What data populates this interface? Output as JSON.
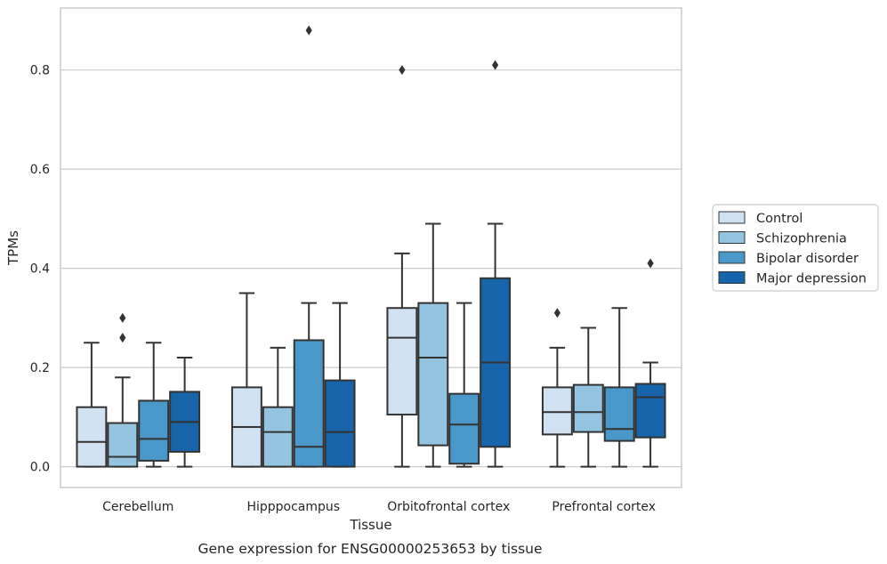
{
  "chart_data": {
    "type": "box",
    "caption": "Gene expression for ENSG00000253653 by tissue",
    "xlabel": "Tissue",
    "ylabel": "TPMs",
    "ylim": [
      -0.042,
      0.925
    ],
    "yticks": [
      "0.0",
      "0.2",
      "0.4",
      "0.6",
      "0.8"
    ],
    "grid": true,
    "legend_placement": "right",
    "categories": [
      "Cerebellum",
      "Hipppocampus",
      "Orbitofrontal cortex",
      "Prefrontal cortex"
    ],
    "series": [
      {
        "name": "Control",
        "color": "#d0e1f2",
        "boxes": [
          {
            "whisker_low": 0.0,
            "q1": 0.0,
            "median": 0.05,
            "q3": 0.12,
            "whisker_high": 0.25,
            "outliers": []
          },
          {
            "whisker_low": 0.0,
            "q1": 0.0,
            "median": 0.08,
            "q3": 0.16,
            "whisker_high": 0.35,
            "outliers": []
          },
          {
            "whisker_low": 0.0,
            "q1": 0.105,
            "median": 0.26,
            "q3": 0.32,
            "whisker_high": 0.43,
            "outliers": [
              0.8
            ]
          },
          {
            "whisker_low": 0.0,
            "q1": 0.065,
            "median": 0.11,
            "q3": 0.16,
            "whisker_high": 0.24,
            "outliers": [
              0.31
            ]
          }
        ]
      },
      {
        "name": "Schizophrenia",
        "color": "#94c4df",
        "boxes": [
          {
            "whisker_low": 0.0,
            "q1": 0.0,
            "median": 0.02,
            "q3": 0.088,
            "whisker_high": 0.18,
            "outliers": [
              0.26,
              0.3
            ]
          },
          {
            "whisker_low": 0.0,
            "q1": 0.0,
            "median": 0.07,
            "q3": 0.12,
            "whisker_high": 0.24,
            "outliers": []
          },
          {
            "whisker_low": 0.0,
            "q1": 0.043,
            "median": 0.22,
            "q3": 0.33,
            "whisker_high": 0.49,
            "outliers": []
          },
          {
            "whisker_low": 0.0,
            "q1": 0.07,
            "median": 0.11,
            "q3": 0.165,
            "whisker_high": 0.28,
            "outliers": []
          }
        ]
      },
      {
        "name": "Bipolar disorder",
        "color": "#4a98c9",
        "boxes": [
          {
            "whisker_low": 0.0,
            "q1": 0.012,
            "median": 0.056,
            "q3": 0.133,
            "whisker_high": 0.25,
            "outliers": []
          },
          {
            "whisker_low": 0.0,
            "q1": 0.0,
            "median": 0.04,
            "q3": 0.255,
            "whisker_high": 0.33,
            "outliers": [
              0.88
            ]
          },
          {
            "whisker_low": 0.0,
            "q1": 0.006,
            "median": 0.085,
            "q3": 0.147,
            "whisker_high": 0.33,
            "outliers": []
          },
          {
            "whisker_low": 0.0,
            "q1": 0.052,
            "median": 0.076,
            "q3": 0.16,
            "whisker_high": 0.32,
            "outliers": []
          }
        ]
      },
      {
        "name": "Major depression",
        "color": "#1764ab",
        "boxes": [
          {
            "whisker_low": 0.0,
            "q1": 0.03,
            "median": 0.09,
            "q3": 0.151,
            "whisker_high": 0.22,
            "outliers": []
          },
          {
            "whisker_low": 0.0,
            "q1": 0.0,
            "median": 0.07,
            "q3": 0.174,
            "whisker_high": 0.33,
            "outliers": []
          },
          {
            "whisker_low": 0.0,
            "q1": 0.04,
            "median": 0.21,
            "q3": 0.38,
            "whisker_high": 0.49,
            "outliers": [
              0.81
            ]
          },
          {
            "whisker_low": 0.0,
            "q1": 0.059,
            "median": 0.14,
            "q3": 0.167,
            "whisker_high": 0.21,
            "outliers": [
              0.41
            ]
          }
        ]
      }
    ]
  }
}
